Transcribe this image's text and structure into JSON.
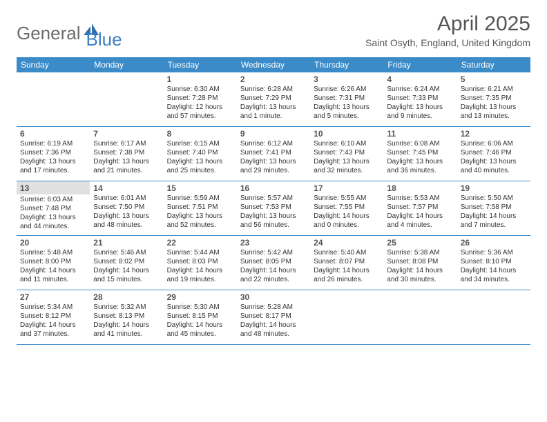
{
  "logo": {
    "part1": "General",
    "part2": "Blue"
  },
  "title": "April 2025",
  "location": "Saint Osyth, England, United Kingdom",
  "colors": {
    "header_bg": "#3b8bc9",
    "header_text": "#ffffff",
    "rule": "#3b8bc9",
    "body_text": "#333333",
    "daynum": "#555555",
    "today_bg": "#e0e0e0",
    "logo_gray": "#6b6b6b",
    "logo_blue": "#3b7fc4"
  },
  "dow": [
    "Sunday",
    "Monday",
    "Tuesday",
    "Wednesday",
    "Thursday",
    "Friday",
    "Saturday"
  ],
  "weeks": [
    [
      null,
      null,
      {
        "n": "1",
        "l1": "Sunrise: 6:30 AM",
        "l2": "Sunset: 7:28 PM",
        "l3": "Daylight: 12 hours",
        "l4": "and 57 minutes."
      },
      {
        "n": "2",
        "l1": "Sunrise: 6:28 AM",
        "l2": "Sunset: 7:29 PM",
        "l3": "Daylight: 13 hours",
        "l4": "and 1 minute."
      },
      {
        "n": "3",
        "l1": "Sunrise: 6:26 AM",
        "l2": "Sunset: 7:31 PM",
        "l3": "Daylight: 13 hours",
        "l4": "and 5 minutes."
      },
      {
        "n": "4",
        "l1": "Sunrise: 6:24 AM",
        "l2": "Sunset: 7:33 PM",
        "l3": "Daylight: 13 hours",
        "l4": "and 9 minutes."
      },
      {
        "n": "5",
        "l1": "Sunrise: 6:21 AM",
        "l2": "Sunset: 7:35 PM",
        "l3": "Daylight: 13 hours",
        "l4": "and 13 minutes."
      }
    ],
    [
      {
        "n": "6",
        "l1": "Sunrise: 6:19 AM",
        "l2": "Sunset: 7:36 PM",
        "l3": "Daylight: 13 hours",
        "l4": "and 17 minutes."
      },
      {
        "n": "7",
        "l1": "Sunrise: 6:17 AM",
        "l2": "Sunset: 7:38 PM",
        "l3": "Daylight: 13 hours",
        "l4": "and 21 minutes."
      },
      {
        "n": "8",
        "l1": "Sunrise: 6:15 AM",
        "l2": "Sunset: 7:40 PM",
        "l3": "Daylight: 13 hours",
        "l4": "and 25 minutes."
      },
      {
        "n": "9",
        "l1": "Sunrise: 6:12 AM",
        "l2": "Sunset: 7:41 PM",
        "l3": "Daylight: 13 hours",
        "l4": "and 29 minutes."
      },
      {
        "n": "10",
        "l1": "Sunrise: 6:10 AM",
        "l2": "Sunset: 7:43 PM",
        "l3": "Daylight: 13 hours",
        "l4": "and 32 minutes."
      },
      {
        "n": "11",
        "l1": "Sunrise: 6:08 AM",
        "l2": "Sunset: 7:45 PM",
        "l3": "Daylight: 13 hours",
        "l4": "and 36 minutes."
      },
      {
        "n": "12",
        "l1": "Sunrise: 6:06 AM",
        "l2": "Sunset: 7:46 PM",
        "l3": "Daylight: 13 hours",
        "l4": "and 40 minutes."
      }
    ],
    [
      {
        "n": "13",
        "today": true,
        "l1": "Sunrise: 6:03 AM",
        "l2": "Sunset: 7:48 PM",
        "l3": "Daylight: 13 hours",
        "l4": "and 44 minutes."
      },
      {
        "n": "14",
        "l1": "Sunrise: 6:01 AM",
        "l2": "Sunset: 7:50 PM",
        "l3": "Daylight: 13 hours",
        "l4": "and 48 minutes."
      },
      {
        "n": "15",
        "l1": "Sunrise: 5:59 AM",
        "l2": "Sunset: 7:51 PM",
        "l3": "Daylight: 13 hours",
        "l4": "and 52 minutes."
      },
      {
        "n": "16",
        "l1": "Sunrise: 5:57 AM",
        "l2": "Sunset: 7:53 PM",
        "l3": "Daylight: 13 hours",
        "l4": "and 56 minutes."
      },
      {
        "n": "17",
        "l1": "Sunrise: 5:55 AM",
        "l2": "Sunset: 7:55 PM",
        "l3": "Daylight: 14 hours",
        "l4": "and 0 minutes."
      },
      {
        "n": "18",
        "l1": "Sunrise: 5:53 AM",
        "l2": "Sunset: 7:57 PM",
        "l3": "Daylight: 14 hours",
        "l4": "and 4 minutes."
      },
      {
        "n": "19",
        "l1": "Sunrise: 5:50 AM",
        "l2": "Sunset: 7:58 PM",
        "l3": "Daylight: 14 hours",
        "l4": "and 7 minutes."
      }
    ],
    [
      {
        "n": "20",
        "l1": "Sunrise: 5:48 AM",
        "l2": "Sunset: 8:00 PM",
        "l3": "Daylight: 14 hours",
        "l4": "and 11 minutes."
      },
      {
        "n": "21",
        "l1": "Sunrise: 5:46 AM",
        "l2": "Sunset: 8:02 PM",
        "l3": "Daylight: 14 hours",
        "l4": "and 15 minutes."
      },
      {
        "n": "22",
        "l1": "Sunrise: 5:44 AM",
        "l2": "Sunset: 8:03 PM",
        "l3": "Daylight: 14 hours",
        "l4": "and 19 minutes."
      },
      {
        "n": "23",
        "l1": "Sunrise: 5:42 AM",
        "l2": "Sunset: 8:05 PM",
        "l3": "Daylight: 14 hours",
        "l4": "and 22 minutes."
      },
      {
        "n": "24",
        "l1": "Sunrise: 5:40 AM",
        "l2": "Sunset: 8:07 PM",
        "l3": "Daylight: 14 hours",
        "l4": "and 26 minutes."
      },
      {
        "n": "25",
        "l1": "Sunrise: 5:38 AM",
        "l2": "Sunset: 8:08 PM",
        "l3": "Daylight: 14 hours",
        "l4": "and 30 minutes."
      },
      {
        "n": "26",
        "l1": "Sunrise: 5:36 AM",
        "l2": "Sunset: 8:10 PM",
        "l3": "Daylight: 14 hours",
        "l4": "and 34 minutes."
      }
    ],
    [
      {
        "n": "27",
        "l1": "Sunrise: 5:34 AM",
        "l2": "Sunset: 8:12 PM",
        "l3": "Daylight: 14 hours",
        "l4": "and 37 minutes."
      },
      {
        "n": "28",
        "l1": "Sunrise: 5:32 AM",
        "l2": "Sunset: 8:13 PM",
        "l3": "Daylight: 14 hours",
        "l4": "and 41 minutes."
      },
      {
        "n": "29",
        "l1": "Sunrise: 5:30 AM",
        "l2": "Sunset: 8:15 PM",
        "l3": "Daylight: 14 hours",
        "l4": "and 45 minutes."
      },
      {
        "n": "30",
        "l1": "Sunrise: 5:28 AM",
        "l2": "Sunset: 8:17 PM",
        "l3": "Daylight: 14 hours",
        "l4": "and 48 minutes."
      },
      null,
      null,
      null
    ]
  ]
}
